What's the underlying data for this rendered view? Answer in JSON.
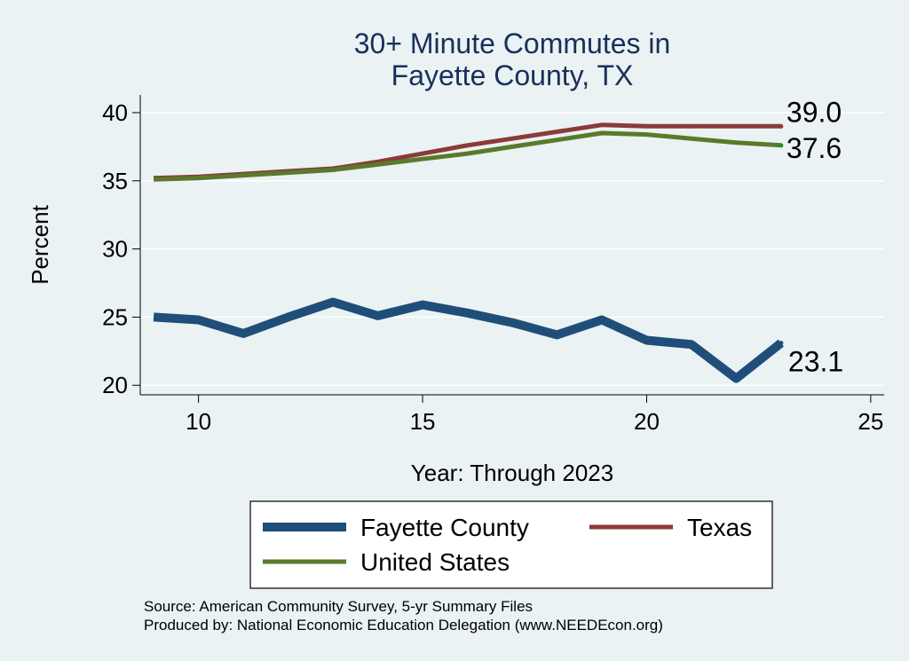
{
  "chart_data": {
    "type": "line",
    "title": [
      "30+ Minute Commutes in",
      "Fayette County, TX"
    ],
    "xlabel": "Year: Through 2023",
    "ylabel": "Percent",
    "xlim": [
      8.7,
      25.3
    ],
    "ylim": [
      19.3,
      41.3
    ],
    "xticks": [
      10,
      15,
      20,
      25
    ],
    "yticks": [
      20,
      25,
      30,
      35,
      40
    ],
    "grid": true,
    "legend_position": "bottom",
    "series": [
      {
        "name": "Fayette County",
        "color": "#1f4e79",
        "x": [
          9,
          10,
          11,
          12,
          13,
          14,
          15,
          16,
          17,
          18,
          19,
          20,
          21,
          22,
          23
        ],
        "values": [
          25.0,
          24.8,
          23.8,
          25.0,
          26.1,
          25.1,
          25.9,
          25.3,
          24.6,
          23.7,
          24.8,
          23.3,
          23.0,
          20.5,
          23.1
        ],
        "end_label": "23.1"
      },
      {
        "name": "Texas",
        "color": "#8b3a3a",
        "x": [
          9,
          10,
          11,
          12,
          13,
          14,
          15,
          16,
          17,
          18,
          19,
          20,
          21,
          22,
          23
        ],
        "values": [
          35.2,
          35.3,
          35.5,
          35.7,
          35.9,
          36.4,
          37.0,
          37.6,
          38.1,
          38.6,
          39.1,
          39.0,
          39.0,
          39.0,
          39.0
        ],
        "end_label": "39.0"
      },
      {
        "name": "United States",
        "color": "#5a7a2b",
        "x": [
          9,
          10,
          11,
          12,
          13,
          14,
          15,
          16,
          17,
          18,
          19,
          20,
          21,
          22,
          23
        ],
        "values": [
          35.1,
          35.2,
          35.4,
          35.6,
          35.8,
          36.2,
          36.6,
          37.0,
          37.5,
          38.0,
          38.5,
          38.4,
          38.1,
          37.8,
          37.6
        ],
        "end_label": "37.6"
      }
    ],
    "source_lines": [
      "Source: American Community Survey, 5-yr Summary Files",
      "Produced by: National Economic Education Delegation (www.NEEDEcon.org)"
    ]
  }
}
